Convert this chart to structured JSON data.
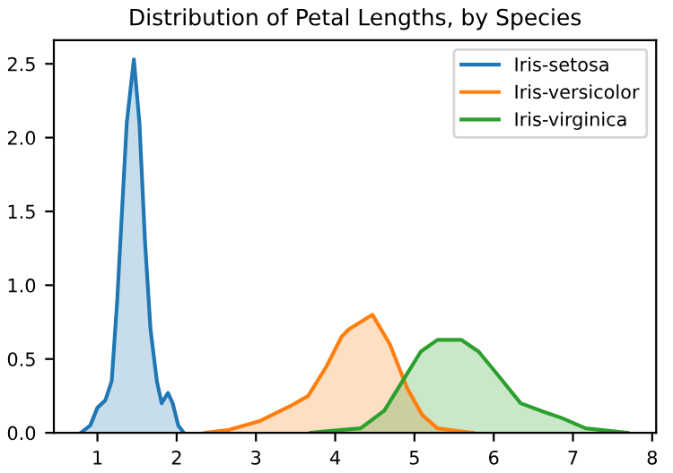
{
  "chart_data": {
    "type": "area",
    "title": "Distribution of Petal Lengths, by Species",
    "xlim": [
      0.45,
      8.05
    ],
    "xticks": [
      1,
      2,
      3,
      4,
      5,
      6,
      7,
      8
    ],
    "ylim": [
      0,
      2.66
    ],
    "yticks": [
      {
        "value": 0,
        "label": "0.0"
      },
      0.5,
      {
        "value": 1,
        "label": "1.0"
      },
      1.5,
      {
        "value": 2,
        "label": "2.0"
      },
      2.5
    ],
    "legend": "top right",
    "grid": false,
    "series": [
      {
        "name": "Iris-setosa",
        "color": "#1f77b4",
        "x": [
          0.79,
          0.91,
          1.0,
          1.1,
          1.18,
          1.25,
          1.29,
          1.37,
          1.46,
          1.53,
          1.6,
          1.67,
          1.75,
          1.81,
          1.89,
          1.95,
          2.02,
          2.09
        ],
        "values": [
          0,
          0.05,
          0.17,
          0.22,
          0.35,
          0.9,
          1.3,
          2.1,
          2.53,
          2.1,
          1.3,
          0.7,
          0.35,
          0.2,
          0.27,
          0.2,
          0.05,
          0
        ]
      },
      {
        "name": "Iris-versicolor",
        "color": "#ff7f0e",
        "x": [
          2.36,
          2.66,
          3.05,
          3.43,
          3.66,
          3.89,
          4.08,
          4.17,
          4.47,
          4.69,
          4.91,
          5.1,
          5.29,
          5.74
        ],
        "values": [
          0,
          0.02,
          0.08,
          0.18,
          0.25,
          0.45,
          0.65,
          0.7,
          0.8,
          0.6,
          0.3,
          0.12,
          0.03,
          0
        ]
      },
      {
        "name": "Iris-virginica",
        "color": "#2ca02c",
        "x": [
          3.69,
          3.86,
          4.32,
          4.62,
          4.85,
          5.08,
          5.29,
          5.59,
          5.81,
          6.04,
          6.34,
          6.64,
          6.86,
          7.16,
          7.69
        ],
        "values": [
          0,
          0.01,
          0.03,
          0.15,
          0.35,
          0.55,
          0.63,
          0.63,
          0.55,
          0.4,
          0.2,
          0.14,
          0.1,
          0.03,
          0
        ]
      }
    ]
  }
}
